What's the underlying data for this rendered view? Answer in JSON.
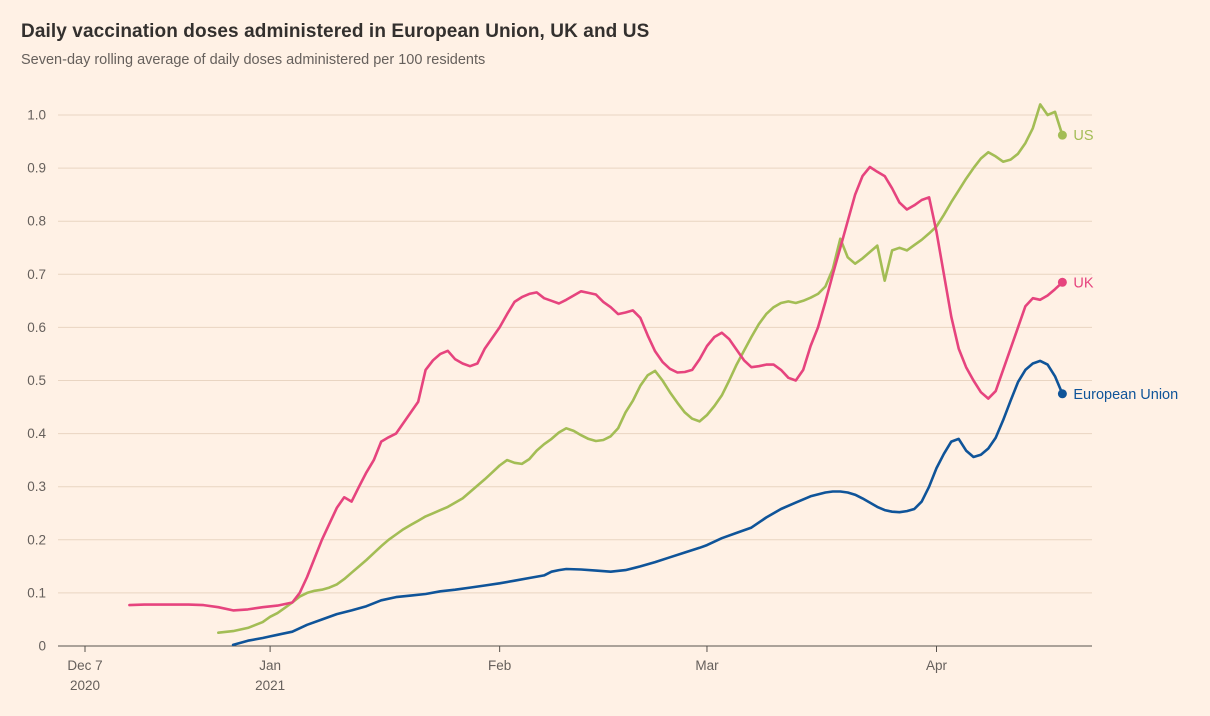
{
  "colors": {
    "background": "#FFF1E5",
    "grid": "#E9D5C2",
    "axis": "#57524D",
    "tick_label": "#66605C",
    "title": "#33302E",
    "subtitle": "#66605C"
  },
  "chart_data": {
    "type": "line",
    "title": "Daily vaccination doses administered in European Union, UK and US",
    "subtitle": "Seven-day rolling average of daily doses administered per 100 residents",
    "x_unit": "days since Dec 7 2020",
    "x_domain": [
      0,
      136
    ],
    "y_domain": [
      0,
      1.0
    ],
    "grid": "horizontal",
    "legend_position": "line-end-labels",
    "x_ticks": [
      {
        "pos": 0,
        "label": "Dec 7",
        "sublabel": "2020"
      },
      {
        "pos": 25,
        "label": "Jan",
        "sublabel": "2021"
      },
      {
        "pos": 56,
        "label": "Feb"
      },
      {
        "pos": 84,
        "label": "Mar"
      },
      {
        "pos": 115,
        "label": "Apr"
      }
    ],
    "y_ticks": [
      {
        "v": 0,
        "label": "0"
      },
      {
        "v": 0.1,
        "label": "0.1"
      },
      {
        "v": 0.2,
        "label": "0.2"
      },
      {
        "v": 0.3,
        "label": "0.3"
      },
      {
        "v": 0.4,
        "label": "0.4"
      },
      {
        "v": 0.5,
        "label": "0.5"
      },
      {
        "v": 0.6,
        "label": "0.6"
      },
      {
        "v": 0.7,
        "label": "0.7"
      },
      {
        "v": 0.8,
        "label": "0.8"
      },
      {
        "v": 0.9,
        "label": "0.9"
      },
      {
        "v": 1.0,
        "label": "1.0"
      }
    ],
    "series": [
      {
        "name": "US",
        "color": "#A3BD55",
        "points": [
          [
            18,
            0.025
          ],
          [
            20,
            0.028
          ],
          [
            22,
            0.034
          ],
          [
            24,
            0.045
          ],
          [
            25,
            0.055
          ],
          [
            26,
            0.062
          ],
          [
            27,
            0.072
          ],
          [
            28,
            0.082
          ],
          [
            29,
            0.093
          ],
          [
            30,
            0.1
          ],
          [
            31,
            0.104
          ],
          [
            32,
            0.106
          ],
          [
            33,
            0.11
          ],
          [
            34,
            0.116
          ],
          [
            35,
            0.126
          ],
          [
            36,
            0.138
          ],
          [
            37,
            0.15
          ],
          [
            38,
            0.162
          ],
          [
            39,
            0.175
          ],
          [
            40,
            0.188
          ],
          [
            41,
            0.2
          ],
          [
            42,
            0.21
          ],
          [
            43,
            0.22
          ],
          [
            44,
            0.228
          ],
          [
            45,
            0.236
          ],
          [
            46,
            0.244
          ],
          [
            47,
            0.25
          ],
          [
            48,
            0.256
          ],
          [
            49,
            0.262
          ],
          [
            50,
            0.27
          ],
          [
            51,
            0.278
          ],
          [
            52,
            0.29
          ],
          [
            53,
            0.302
          ],
          [
            54,
            0.314
          ],
          [
            55,
            0.327
          ],
          [
            56,
            0.34
          ],
          [
            57,
            0.35
          ],
          [
            58,
            0.345
          ],
          [
            59,
            0.343
          ],
          [
            60,
            0.352
          ],
          [
            61,
            0.368
          ],
          [
            62,
            0.38
          ],
          [
            63,
            0.39
          ],
          [
            64,
            0.402
          ],
          [
            65,
            0.41
          ],
          [
            66,
            0.405
          ],
          [
            67,
            0.397
          ],
          [
            68,
            0.39
          ],
          [
            69,
            0.386
          ],
          [
            70,
            0.388
          ],
          [
            71,
            0.395
          ],
          [
            72,
            0.41
          ],
          [
            73,
            0.44
          ],
          [
            74,
            0.462
          ],
          [
            75,
            0.49
          ],
          [
            76,
            0.51
          ],
          [
            77,
            0.518
          ],
          [
            78,
            0.5
          ],
          [
            79,
            0.478
          ],
          [
            80,
            0.458
          ],
          [
            81,
            0.44
          ],
          [
            82,
            0.428
          ],
          [
            83,
            0.423
          ],
          [
            84,
            0.435
          ],
          [
            85,
            0.452
          ],
          [
            86,
            0.472
          ],
          [
            87,
            0.5
          ],
          [
            88,
            0.53
          ],
          [
            89,
            0.556
          ],
          [
            90,
            0.582
          ],
          [
            91,
            0.606
          ],
          [
            92,
            0.625
          ],
          [
            93,
            0.638
          ],
          [
            94,
            0.646
          ],
          [
            95,
            0.649
          ],
          [
            96,
            0.646
          ],
          [
            97,
            0.65
          ],
          [
            98,
            0.656
          ],
          [
            99,
            0.663
          ],
          [
            100,
            0.677
          ],
          [
            101,
            0.71
          ],
          [
            102,
            0.767
          ],
          [
            103,
            0.732
          ],
          [
            104,
            0.72
          ],
          [
            105,
            0.73
          ],
          [
            106,
            0.742
          ],
          [
            107,
            0.754
          ],
          [
            108,
            0.688
          ],
          [
            109,
            0.745
          ],
          [
            110,
            0.75
          ],
          [
            111,
            0.745
          ],
          [
            112,
            0.755
          ],
          [
            113,
            0.765
          ],
          [
            114,
            0.777
          ],
          [
            115,
            0.79
          ],
          [
            116,
            0.812
          ],
          [
            117,
            0.836
          ],
          [
            118,
            0.858
          ],
          [
            119,
            0.88
          ],
          [
            120,
            0.9
          ],
          [
            121,
            0.918
          ],
          [
            122,
            0.93
          ],
          [
            123,
            0.922
          ],
          [
            124,
            0.912
          ],
          [
            125,
            0.916
          ],
          [
            126,
            0.927
          ],
          [
            127,
            0.947
          ],
          [
            128,
            0.975
          ],
          [
            129,
            1.02
          ],
          [
            130,
            1.0
          ],
          [
            131,
            1.006
          ],
          [
            132,
            0.962
          ]
        ]
      },
      {
        "name": "UK",
        "color": "#E6447E",
        "points": [
          [
            6,
            0.077
          ],
          [
            8,
            0.078
          ],
          [
            10,
            0.078
          ],
          [
            12,
            0.078
          ],
          [
            14,
            0.078
          ],
          [
            16,
            0.077
          ],
          [
            18,
            0.073
          ],
          [
            20,
            0.067
          ],
          [
            22,
            0.069
          ],
          [
            24,
            0.073
          ],
          [
            26,
            0.076
          ],
          [
            28,
            0.082
          ],
          [
            29,
            0.1
          ],
          [
            30,
            0.13
          ],
          [
            31,
            0.165
          ],
          [
            32,
            0.2
          ],
          [
            33,
            0.23
          ],
          [
            34,
            0.26
          ],
          [
            35,
            0.28
          ],
          [
            36,
            0.272
          ],
          [
            37,
            0.3
          ],
          [
            38,
            0.327
          ],
          [
            39,
            0.35
          ],
          [
            40,
            0.385
          ],
          [
            41,
            0.393
          ],
          [
            42,
            0.4
          ],
          [
            43,
            0.42
          ],
          [
            44,
            0.44
          ],
          [
            45,
            0.46
          ],
          [
            46,
            0.52
          ],
          [
            47,
            0.538
          ],
          [
            48,
            0.55
          ],
          [
            49,
            0.556
          ],
          [
            50,
            0.54
          ],
          [
            51,
            0.532
          ],
          [
            52,
            0.527
          ],
          [
            53,
            0.532
          ],
          [
            54,
            0.56
          ],
          [
            55,
            0.58
          ],
          [
            56,
            0.6
          ],
          [
            57,
            0.625
          ],
          [
            58,
            0.648
          ],
          [
            59,
            0.657
          ],
          [
            60,
            0.663
          ],
          [
            61,
            0.666
          ],
          [
            62,
            0.655
          ],
          [
            63,
            0.65
          ],
          [
            64,
            0.645
          ],
          [
            65,
            0.652
          ],
          [
            66,
            0.66
          ],
          [
            67,
            0.668
          ],
          [
            68,
            0.665
          ],
          [
            69,
            0.662
          ],
          [
            70,
            0.648
          ],
          [
            71,
            0.638
          ],
          [
            72,
            0.625
          ],
          [
            73,
            0.628
          ],
          [
            74,
            0.632
          ],
          [
            75,
            0.618
          ],
          [
            76,
            0.585
          ],
          [
            77,
            0.555
          ],
          [
            78,
            0.535
          ],
          [
            79,
            0.522
          ],
          [
            80,
            0.515
          ],
          [
            81,
            0.516
          ],
          [
            82,
            0.52
          ],
          [
            83,
            0.54
          ],
          [
            84,
            0.565
          ],
          [
            85,
            0.582
          ],
          [
            86,
            0.59
          ],
          [
            87,
            0.578
          ],
          [
            88,
            0.558
          ],
          [
            89,
            0.538
          ],
          [
            90,
            0.525
          ],
          [
            91,
            0.527
          ],
          [
            92,
            0.53
          ],
          [
            93,
            0.53
          ],
          [
            94,
            0.52
          ],
          [
            95,
            0.505
          ],
          [
            96,
            0.5
          ],
          [
            97,
            0.52
          ],
          [
            98,
            0.565
          ],
          [
            99,
            0.6
          ],
          [
            100,
            0.648
          ],
          [
            101,
            0.7
          ],
          [
            102,
            0.75
          ],
          [
            103,
            0.8
          ],
          [
            104,
            0.85
          ],
          [
            105,
            0.885
          ],
          [
            106,
            0.902
          ],
          [
            107,
            0.893
          ],
          [
            108,
            0.885
          ],
          [
            109,
            0.862
          ],
          [
            110,
            0.835
          ],
          [
            111,
            0.822
          ],
          [
            112,
            0.83
          ],
          [
            113,
            0.84
          ],
          [
            114,
            0.845
          ],
          [
            115,
            0.78
          ],
          [
            116,
            0.7
          ],
          [
            117,
            0.62
          ],
          [
            118,
            0.56
          ],
          [
            119,
            0.525
          ],
          [
            120,
            0.5
          ],
          [
            121,
            0.478
          ],
          [
            122,
            0.466
          ],
          [
            123,
            0.48
          ],
          [
            124,
            0.52
          ],
          [
            125,
            0.56
          ],
          [
            126,
            0.6
          ],
          [
            127,
            0.64
          ],
          [
            128,
            0.655
          ],
          [
            129,
            0.652
          ],
          [
            130,
            0.66
          ],
          [
            131,
            0.672
          ],
          [
            132,
            0.685
          ]
        ]
      },
      {
        "name": "European Union",
        "color": "#0F5499",
        "points": [
          [
            20,
            0.002
          ],
          [
            22,
            0.01
          ],
          [
            24,
            0.015
          ],
          [
            25,
            0.018
          ],
          [
            26,
            0.021
          ],
          [
            28,
            0.027
          ],
          [
            30,
            0.04
          ],
          [
            32,
            0.05
          ],
          [
            34,
            0.06
          ],
          [
            36,
            0.067
          ],
          [
            38,
            0.075
          ],
          [
            40,
            0.086
          ],
          [
            42,
            0.092
          ],
          [
            44,
            0.095
          ],
          [
            46,
            0.098
          ],
          [
            48,
            0.103
          ],
          [
            50,
            0.106
          ],
          [
            52,
            0.11
          ],
          [
            54,
            0.114
          ],
          [
            56,
            0.118
          ],
          [
            58,
            0.123
          ],
          [
            60,
            0.128
          ],
          [
            62,
            0.133
          ],
          [
            63,
            0.14
          ],
          [
            64,
            0.143
          ],
          [
            65,
            0.145
          ],
          [
            67,
            0.144
          ],
          [
            69,
            0.142
          ],
          [
            71,
            0.14
          ],
          [
            73,
            0.143
          ],
          [
            75,
            0.15
          ],
          [
            77,
            0.158
          ],
          [
            79,
            0.167
          ],
          [
            81,
            0.176
          ],
          [
            83,
            0.185
          ],
          [
            84,
            0.19
          ],
          [
            86,
            0.203
          ],
          [
            88,
            0.213
          ],
          [
            90,
            0.223
          ],
          [
            92,
            0.242
          ],
          [
            94,
            0.258
          ],
          [
            96,
            0.27
          ],
          [
            98,
            0.282
          ],
          [
            100,
            0.289
          ],
          [
            101,
            0.291
          ],
          [
            102,
            0.291
          ],
          [
            103,
            0.289
          ],
          [
            104,
            0.285
          ],
          [
            105,
            0.278
          ],
          [
            106,
            0.27
          ],
          [
            107,
            0.262
          ],
          [
            108,
            0.256
          ],
          [
            109,
            0.253
          ],
          [
            110,
            0.252
          ],
          [
            111,
            0.254
          ],
          [
            112,
            0.258
          ],
          [
            113,
            0.272
          ],
          [
            114,
            0.3
          ],
          [
            115,
            0.335
          ],
          [
            116,
            0.362
          ],
          [
            117,
            0.385
          ],
          [
            118,
            0.39
          ],
          [
            119,
            0.368
          ],
          [
            120,
            0.356
          ],
          [
            121,
            0.36
          ],
          [
            122,
            0.372
          ],
          [
            123,
            0.392
          ],
          [
            124,
            0.425
          ],
          [
            125,
            0.462
          ],
          [
            126,
            0.497
          ],
          [
            127,
            0.52
          ],
          [
            128,
            0.532
          ],
          [
            129,
            0.537
          ],
          [
            130,
            0.53
          ],
          [
            131,
            0.508
          ],
          [
            132,
            0.475
          ]
        ]
      }
    ]
  }
}
